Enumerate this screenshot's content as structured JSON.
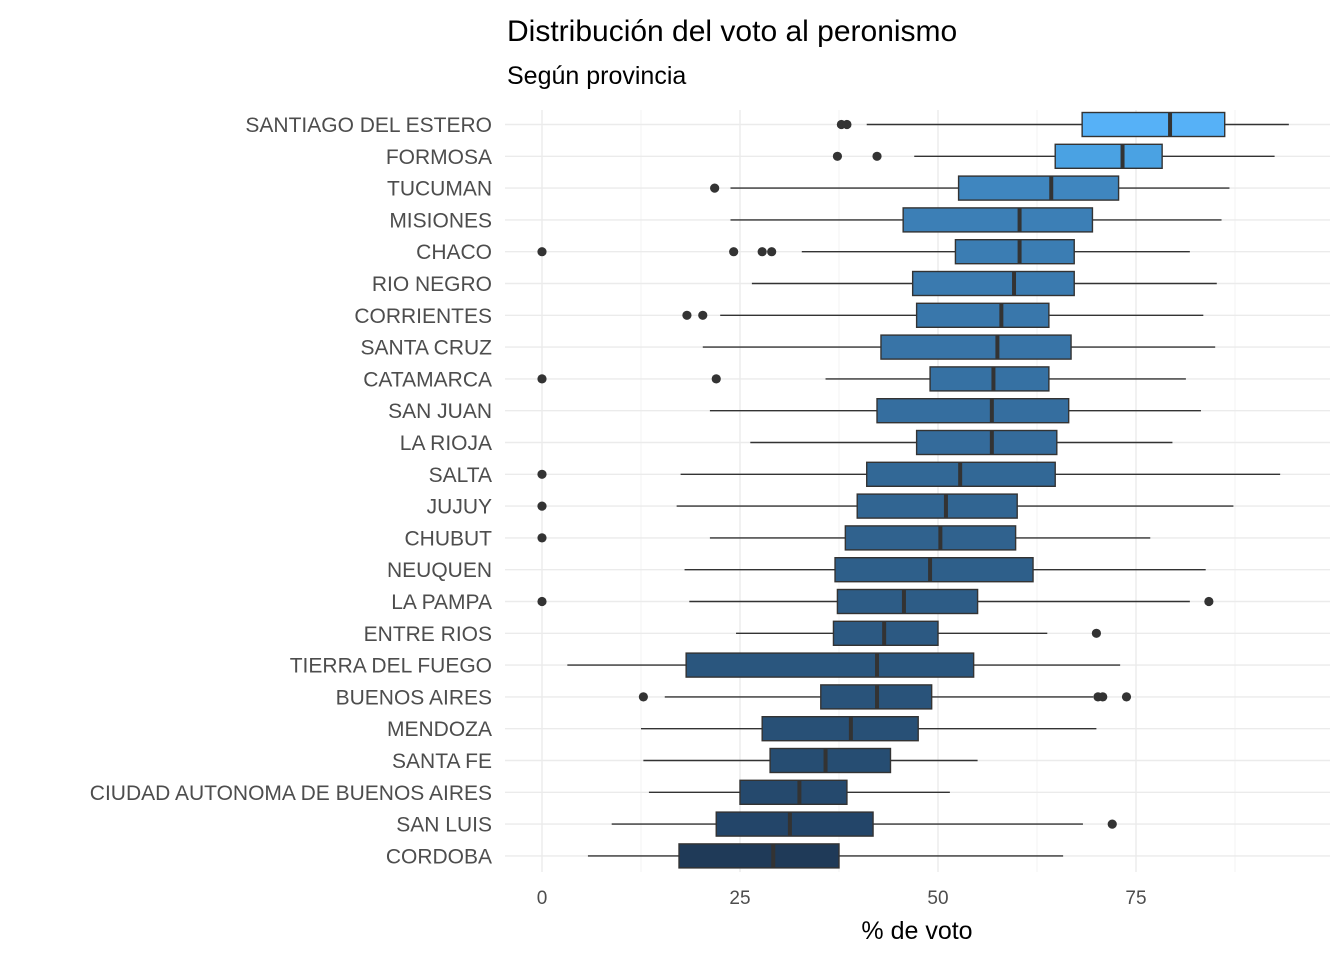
{
  "chart_data": {
    "type": "boxplot",
    "title": "Distribución del voto al peronismo",
    "subtitle": "Según provincia",
    "xlabel": "% de voto",
    "ylabel": "",
    "xlim": [
      -3,
      99
    ],
    "xticks": [
      0,
      25,
      50,
      75
    ],
    "grid": true,
    "legend": "none",
    "categories": [
      "SANTIAGO DEL ESTERO",
      "FORMOSA",
      "TUCUMAN",
      "MISIONES",
      "CHACO",
      "RIO NEGRO",
      "CORRIENTES",
      "SANTA CRUZ",
      "CATAMARCA",
      "SAN JUAN",
      "LA RIOJA",
      "SALTA",
      "JUJUY",
      "CHUBUT",
      "NEUQUEN",
      "LA PAMPA",
      "ENTRE RIOS",
      "TIERRA DEL FUEGO",
      "BUENOS AIRES",
      "MENDOZA",
      "SANTA FE",
      "CIUDAD AUTONOMA DE BUENOS AIRES",
      "SAN LUIS",
      "CORDOBA"
    ],
    "series": [
      {
        "category": "SANTIAGO DEL ESTERO",
        "min": 41.0,
        "q1": 68.2,
        "median": 79.3,
        "q3": 86.2,
        "max": 94.3,
        "outliers": [
          37.8,
          38.5
        ],
        "color": "#56b1f7"
      },
      {
        "category": "FORMOSA",
        "min": 47.0,
        "q1": 64.8,
        "median": 73.3,
        "q3": 78.3,
        "max": 92.5,
        "outliers": [
          37.3,
          42.3
        ],
        "color": "#4aa2e3"
      },
      {
        "category": "TUCUMAN",
        "min": 23.8,
        "q1": 52.6,
        "median": 64.3,
        "q3": 72.8,
        "max": 86.8,
        "outliers": [
          21.8
        ],
        "color": "#3f86bf"
      },
      {
        "category": "MISIONES",
        "min": 23.8,
        "q1": 45.6,
        "median": 60.3,
        "q3": 69.5,
        "max": 85.8,
        "outliers": [],
        "color": "#3c7fb6"
      },
      {
        "category": "CHACO",
        "min": 32.8,
        "q1": 52.2,
        "median": 60.3,
        "q3": 67.2,
        "max": 81.8,
        "outliers": [
          0.0,
          24.2,
          27.8,
          29.0
        ],
        "color": "#3b7db3"
      },
      {
        "category": "RIO NEGRO",
        "min": 26.5,
        "q1": 46.8,
        "median": 59.6,
        "q3": 67.2,
        "max": 85.2,
        "outliers": [],
        "color": "#3a7aaf"
      },
      {
        "category": "CORRIENTES",
        "min": 22.5,
        "q1": 47.3,
        "median": 58.0,
        "q3": 64.0,
        "max": 83.5,
        "outliers": [
          18.3,
          20.3
        ],
        "color": "#3977ab"
      },
      {
        "category": "SANTA CRUZ",
        "min": 20.3,
        "q1": 42.8,
        "median": 57.5,
        "q3": 66.8,
        "max": 85.0,
        "outliers": [],
        "color": "#3874a7"
      },
      {
        "category": "CATAMARCA",
        "min": 35.8,
        "q1": 49.0,
        "median": 57.0,
        "q3": 64.0,
        "max": 81.3,
        "outliers": [
          0.0,
          22.0
        ],
        "color": "#3671a3"
      },
      {
        "category": "SAN JUAN",
        "min": 21.2,
        "q1": 42.3,
        "median": 56.8,
        "q3": 66.5,
        "max": 83.2,
        "outliers": [],
        "color": "#356e9f"
      },
      {
        "category": "LA RIOJA",
        "min": 26.3,
        "q1": 47.3,
        "median": 56.8,
        "q3": 65.0,
        "max": 79.6,
        "outliers": [],
        "color": "#346b9b"
      },
      {
        "category": "SALTA",
        "min": 17.5,
        "q1": 41.0,
        "median": 52.8,
        "q3": 64.8,
        "max": 93.2,
        "outliers": [
          0.0
        ],
        "color": "#326896"
      },
      {
        "category": "JUJUY",
        "min": 17.0,
        "q1": 39.8,
        "median": 51.0,
        "q3": 60.0,
        "max": 87.3,
        "outliers": [
          0.0
        ],
        "color": "#316592"
      },
      {
        "category": "CHUBUT",
        "min": 21.2,
        "q1": 38.3,
        "median": 50.3,
        "q3": 59.8,
        "max": 76.8,
        "outliers": [
          0.0
        ],
        "color": "#30628e"
      },
      {
        "category": "NEUQUEN",
        "min": 18.0,
        "q1": 37.0,
        "median": 49.0,
        "q3": 62.0,
        "max": 83.8,
        "outliers": [],
        "color": "#2e5f8a"
      },
      {
        "category": "LA PAMPA",
        "min": 18.6,
        "q1": 37.3,
        "median": 45.7,
        "q3": 55.0,
        "max": 81.8,
        "outliers": [
          0.0,
          84.2
        ],
        "color": "#2d5c86"
      },
      {
        "category": "ENTRE RIOS",
        "min": 24.5,
        "q1": 36.8,
        "median": 43.2,
        "q3": 50.0,
        "max": 63.8,
        "outliers": [
          70.0
        ],
        "color": "#2c5982"
      },
      {
        "category": "TIERRA DEL FUEGO",
        "min": 3.2,
        "q1": 18.2,
        "median": 42.3,
        "q3": 54.5,
        "max": 73.0,
        "outliers": [],
        "color": "#2a567e"
      },
      {
        "category": "BUENOS AIRES",
        "min": 15.5,
        "q1": 35.2,
        "median": 42.3,
        "q3": 49.2,
        "max": 69.6,
        "outliers": [
          12.8,
          70.2,
          70.8,
          73.8
        ],
        "color": "#29537a"
      },
      {
        "category": "MENDOZA",
        "min": 12.5,
        "q1": 27.8,
        "median": 39.0,
        "q3": 47.5,
        "max": 70.0,
        "outliers": [],
        "color": "#285076"
      },
      {
        "category": "SANTA FE",
        "min": 12.8,
        "q1": 28.8,
        "median": 35.8,
        "q3": 44.0,
        "max": 55.0,
        "outliers": [],
        "color": "#264d72"
      },
      {
        "category": "CIUDAD AUTONOMA DE BUENOS AIRES",
        "min": 13.5,
        "q1": 25.0,
        "median": 32.5,
        "q3": 38.5,
        "max": 51.5,
        "outliers": [],
        "color": "#25496d"
      },
      {
        "category": "SAN LUIS",
        "min": 8.8,
        "q1": 22.0,
        "median": 31.3,
        "q3": 41.8,
        "max": 68.3,
        "outliers": [
          72.0
        ],
        "color": "#234569"
      },
      {
        "category": "CORDOBA",
        "min": 5.8,
        "q1": 17.3,
        "median": 29.2,
        "q3": 37.5,
        "max": 65.8,
        "outliers": [],
        "color": "#1f3a58"
      }
    ]
  }
}
